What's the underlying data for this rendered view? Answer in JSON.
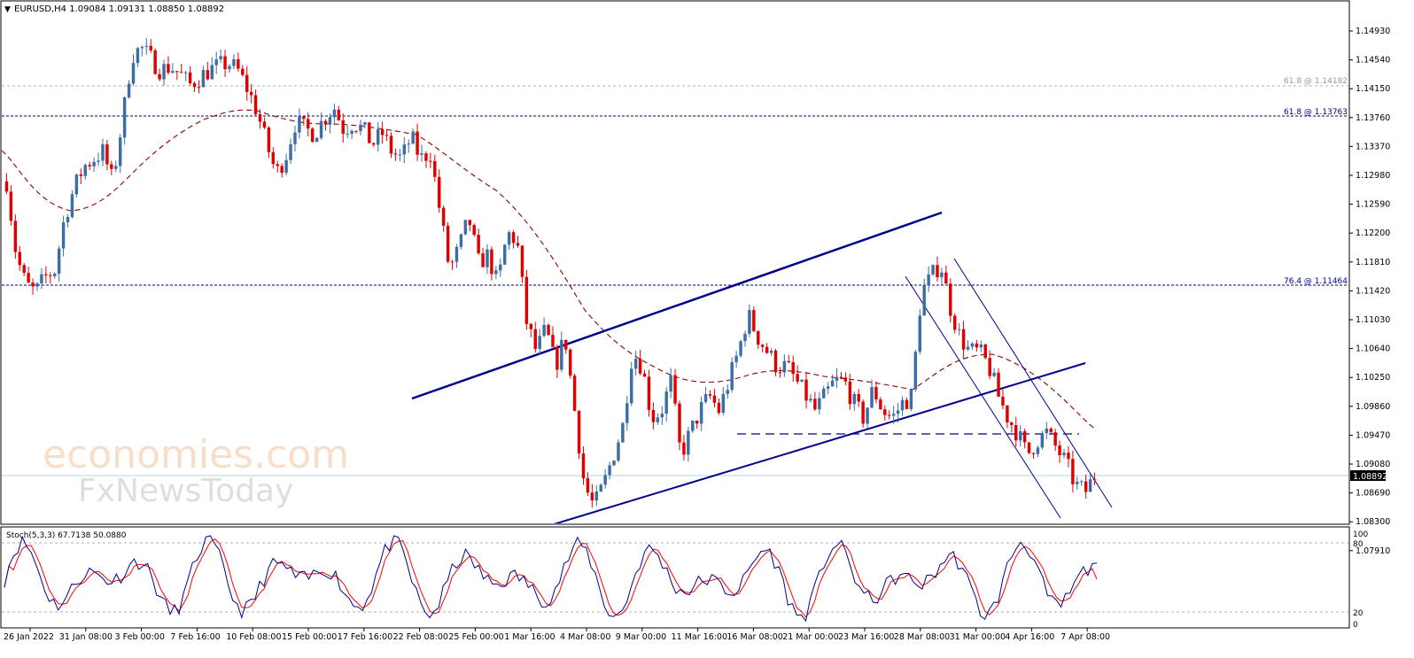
{
  "header": {
    "symbol_info": "EURUSD,H4  1.09084 1.09131 1.08850 1.08892"
  },
  "watermark": {
    "line1": "economies.com",
    "line2": "FxNewsToday"
  },
  "levels": {
    "fib_grey": "61.8 @ 1.14182",
    "fib_upper": "61.8 @ 1.13763",
    "fib_lower": "76.4 @ 1.11464",
    "current_price": "1.08892"
  },
  "colors": {
    "bull": "#3a6ea5",
    "bear": "#e00000",
    "trend": "#00008b",
    "ma": "#8b0000",
    "stoch_main": "#00008b",
    "stoch_signal": "#ff0000",
    "current_line": "#add8e6"
  },
  "price_axis": {
    "ticks": [
      "1.14930",
      "1.14540",
      "1.14150",
      "1.13760",
      "1.13370",
      "1.12980",
      "1.12590",
      "1.12200",
      "1.11810",
      "1.11420",
      "1.11030",
      "1.10640",
      "1.10250",
      "1.09860",
      "1.09470",
      "1.09080",
      "1.08690",
      "1.08300",
      "1.07910"
    ]
  },
  "time_axis": {
    "labels": [
      "26 Jan 2022",
      "31 Jan 08:00",
      "3 Feb 00:00",
      "7 Feb 16:00",
      "10 Feb 08:00",
      "15 Feb 00:00",
      "17 Feb 16:00",
      "22 Feb 08:00",
      "25 Feb 00:00",
      "1 Mar 16:00",
      "4 Mar 08:00",
      "9 Mar 00:00",
      "11 Mar 16:00",
      "16 Mar 08:00",
      "21 Mar 00:00",
      "23 Mar 16:00",
      "28 Mar 08:00",
      "31 Mar 00:00",
      "4 Apr 16:00",
      "7 Apr 08:00"
    ]
  },
  "stochastic": {
    "label": "Stoch(5,3,3) 67.7138 50.0880",
    "ticks": [
      "100",
      "80",
      "20",
      "0"
    ]
  },
  "chart_data": {
    "type": "candlestick",
    "symbol": "EURUSD",
    "timeframe": "H4",
    "ohlc_last": {
      "open": 1.09084,
      "high": 1.09131,
      "low": 1.0885,
      "close": 1.08892
    },
    "ylim": [
      1.0791,
      1.1532
    ],
    "close_path": [
      1.129,
      1.119,
      1.115,
      1.114,
      1.116,
      1.117,
      1.124,
      1.128,
      1.131,
      1.132,
      1.133,
      1.129,
      1.137,
      1.146,
      1.147,
      1.1455,
      1.144,
      1.1445,
      1.1435,
      1.142,
      1.143,
      1.144,
      1.1445,
      1.145,
      1.144,
      1.1415,
      1.1385,
      1.134,
      1.13,
      1.1325,
      1.137,
      1.136,
      1.1355,
      1.1375,
      1.139,
      1.136,
      1.137,
      1.136,
      1.134,
      1.1355,
      1.133,
      1.132,
      1.135,
      1.132,
      1.133,
      1.125,
      1.117,
      1.12,
      1.124,
      1.118,
      1.119,
      1.115,
      1.122,
      1.121,
      1.11,
      1.106,
      1.109,
      1.104,
      1.108,
      1.098,
      1.088,
      1.085,
      1.088,
      1.092,
      1.096,
      1.106,
      1.104,
      1.097,
      1.098,
      1.102,
      1.092,
      1.095,
      1.098,
      1.1,
      1.098,
      1.102,
      1.106,
      1.111,
      1.108,
      1.106,
      1.104,
      1.104,
      1.102,
      1.1,
      1.098,
      1.1,
      1.102,
      1.102,
      1.099,
      1.097,
      1.101,
      1.098,
      1.097,
      1.099,
      1.1,
      1.114,
      1.116,
      1.118,
      1.112,
      1.108,
      1.106,
      1.106,
      1.104,
      1.1,
      1.097,
      1.095,
      1.092,
      1.094,
      1.095,
      1.093,
      1.091,
      1.088,
      1.087,
      1.0892
    ],
    "moving_average": "dashed dark red line",
    "lines": {
      "fib_grey": 1.14182,
      "fib_upper": 1.13763,
      "fib_lower": 1.11464,
      "current": 1.08892,
      "support_dash": 1.095
    },
    "stochastic": {
      "k_period": 5,
      "d_period": 3,
      "slowing": 3,
      "main_last": 67.7138,
      "signal_last": 50.088,
      "ylim": [
        0,
        100
      ],
      "levels": [
        20,
        80
      ]
    }
  }
}
